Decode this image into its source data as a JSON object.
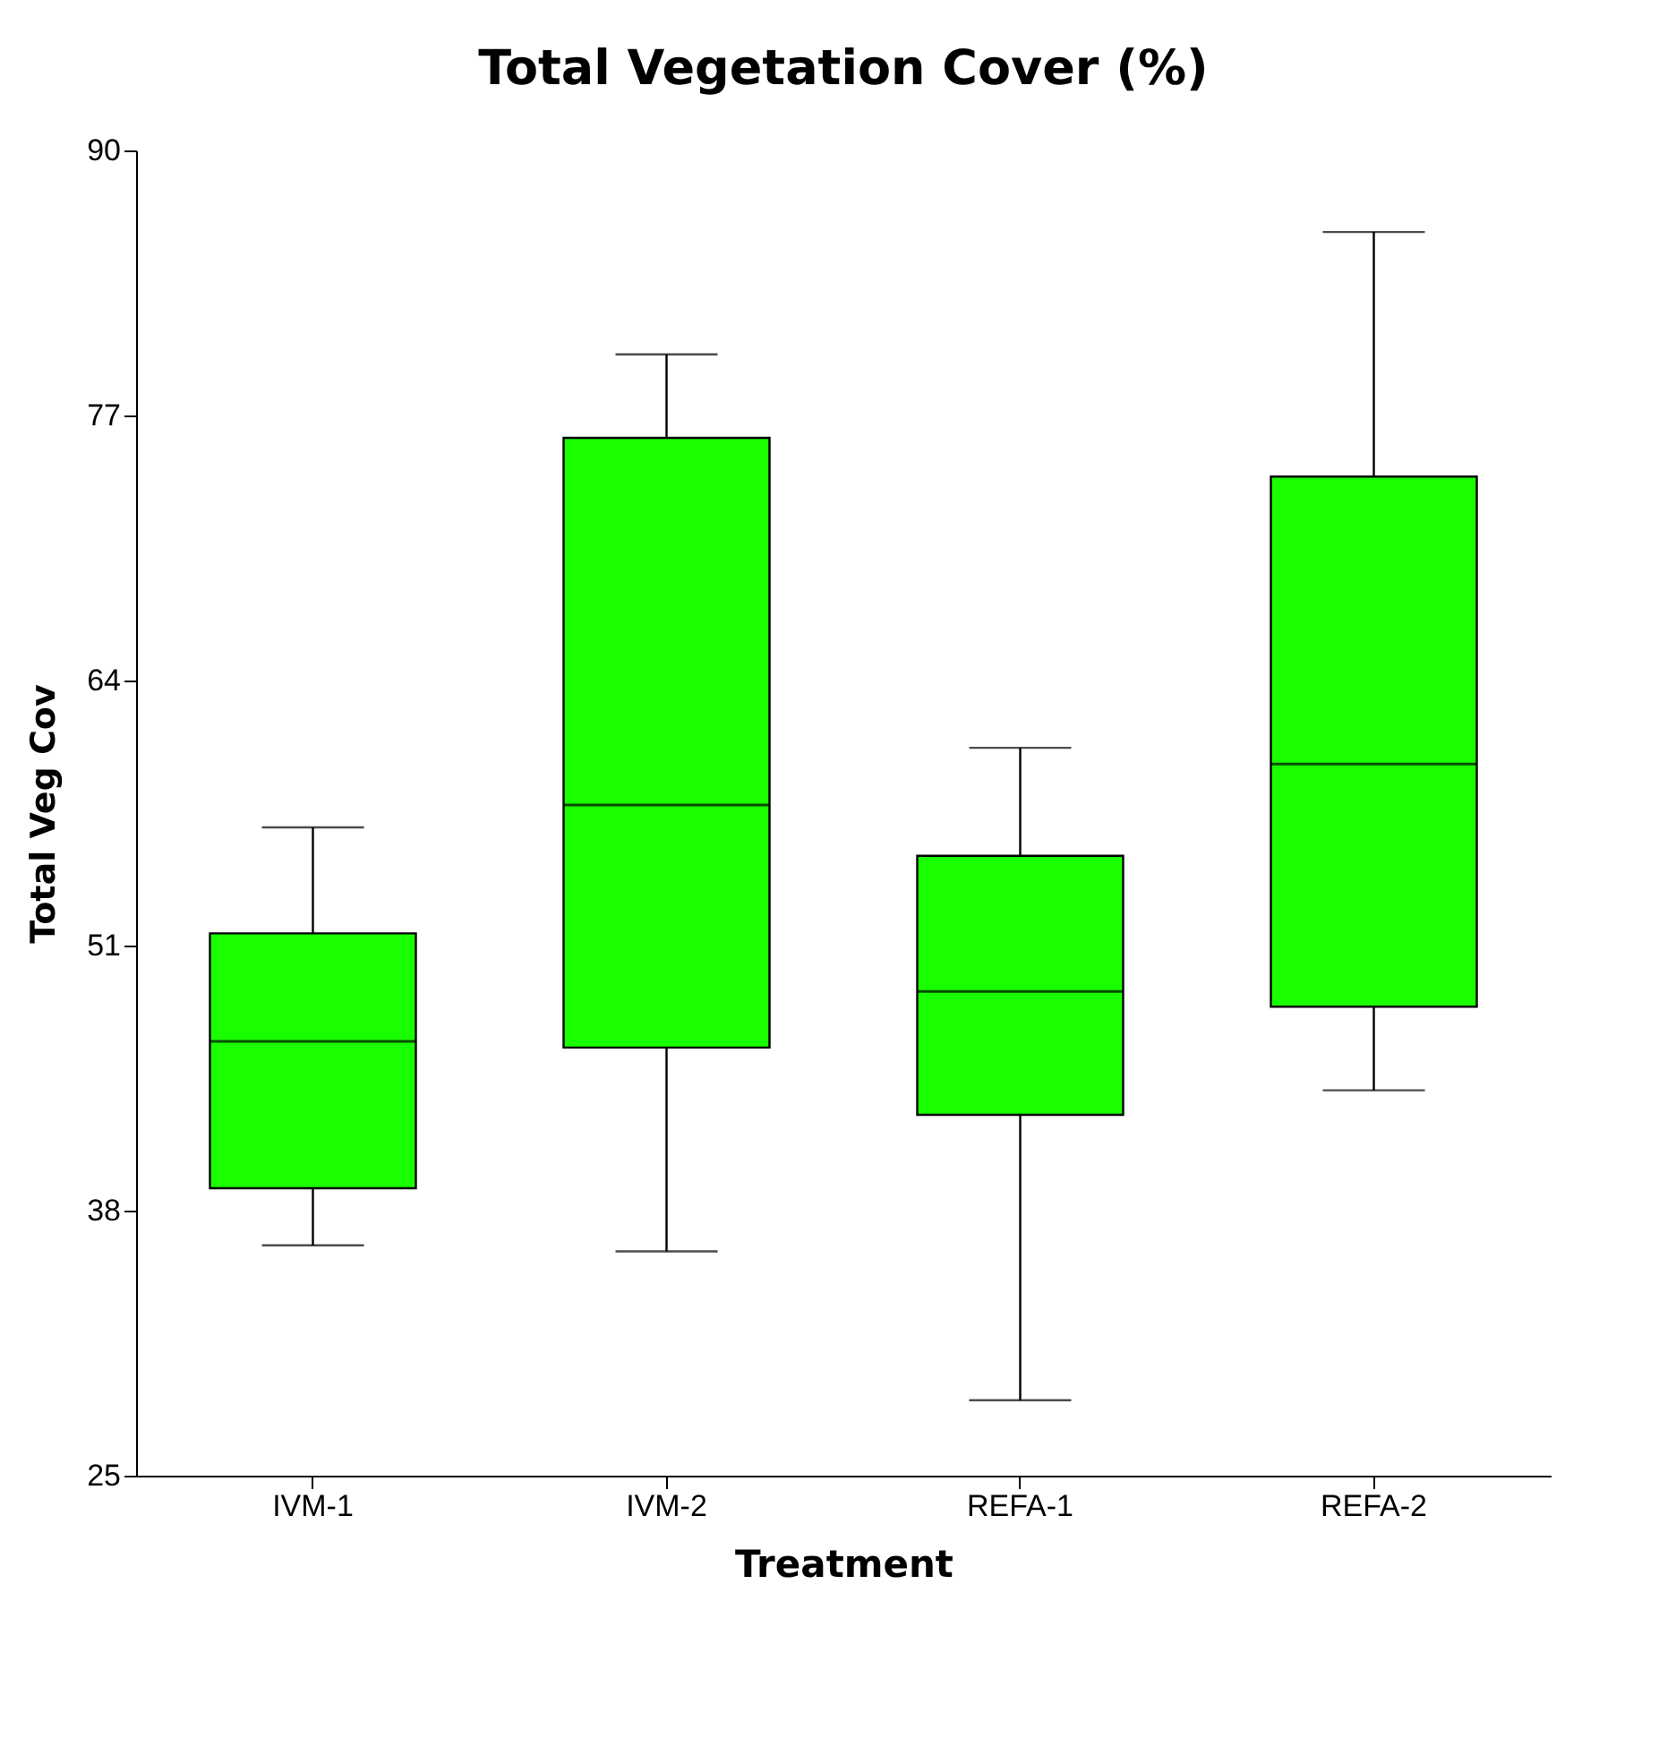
{
  "chart_data": {
    "type": "box",
    "title": "Total Vegetation Cover (%)",
    "xlabel": "Treatment",
    "ylabel": "Total Veg Cov",
    "categories": [
      "IVM-1",
      "IVM-2",
      "REFA-1",
      "REFA-2"
    ],
    "ylim": [
      25,
      90
    ],
    "yticks": [
      25,
      38,
      51,
      64,
      77,
      90
    ],
    "grid": false,
    "series": [
      {
        "color": "#1aff00",
        "boxes": [
          {
            "low": 36.3,
            "q1": 39.1,
            "median": 46.3,
            "q3": 51.6,
            "high": 56.8
          },
          {
            "low": 36.0,
            "q1": 46.0,
            "median": 57.9,
            "q3": 75.9,
            "high": 80.0
          },
          {
            "low": 28.7,
            "q1": 42.7,
            "median": 48.75,
            "q3": 55.4,
            "high": 60.7
          },
          {
            "low": 43.9,
            "q1": 48.0,
            "median": 59.9,
            "q3": 74.0,
            "high": 86.0
          }
        ]
      }
    ]
  }
}
